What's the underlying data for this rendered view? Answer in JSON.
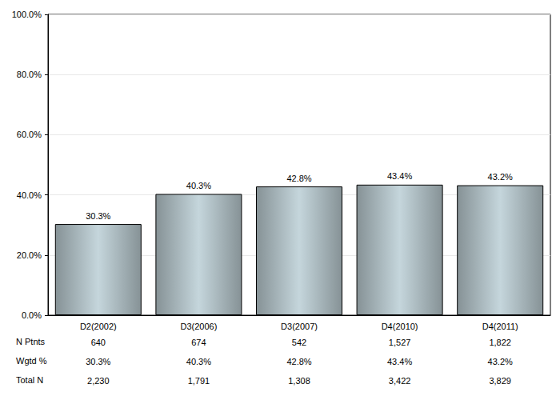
{
  "chart_data": {
    "type": "bar",
    "categories": [
      "D2(2002)",
      "D3(2006)",
      "D3(2007)",
      "D4(2010)",
      "D4(2011)"
    ],
    "values": [
      30.3,
      40.3,
      42.8,
      43.4,
      43.2
    ],
    "value_labels": [
      "30.3%",
      "40.3%",
      "42.8%",
      "43.4%",
      "43.2%"
    ],
    "data_labels": true,
    "color": "#c5d6dc",
    "ylim": [
      0,
      100
    ],
    "yticks": [
      {
        "value": 0,
        "label": "0.0%"
      },
      {
        "value": 20,
        "label": "20.0%"
      },
      {
        "value": 40,
        "label": "40.0%"
      },
      {
        "value": 60,
        "label": "60.0%"
      },
      {
        "value": 80,
        "label": "80.0%"
      },
      {
        "value": 100,
        "label": "100.0%"
      }
    ],
    "grid": true,
    "table": {
      "rows": [
        {
          "label": "N Ptnts",
          "values": [
            "640",
            "674",
            "542",
            "1,527",
            "1,822"
          ]
        },
        {
          "label": "Wgtd %",
          "values": [
            "30.3%",
            "40.3%",
            "42.8%",
            "43.4%",
            "43.2%"
          ]
        },
        {
          "label": "Total N",
          "values": [
            "2,230",
            "1,791",
            "1,308",
            "3,422",
            "3,829"
          ]
        }
      ]
    }
  }
}
